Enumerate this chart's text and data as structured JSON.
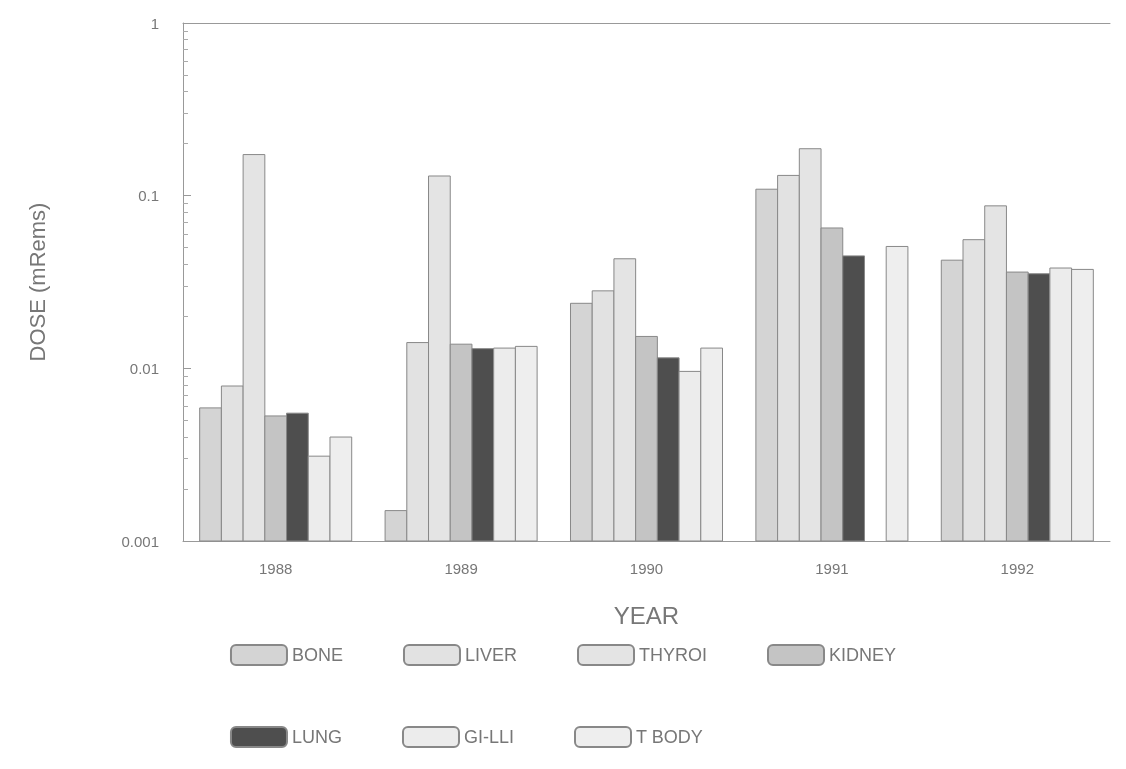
{
  "chart_data": {
    "type": "bar",
    "xlabel": "YEAR",
    "ylabel": "DOSE (mRems)",
    "categories": [
      "1988",
      "1989",
      "1990",
      "1991",
      "1992"
    ],
    "log": "y",
    "ylim": [
      0.001,
      1
    ],
    "yticks": [
      0.001,
      0.01,
      0.1,
      1
    ],
    "grid": false,
    "legend": "bottom",
    "series": [
      {
        "name": "BONE",
        "color": "#d4d4d4",
        "values": [
          0.0059,
          0.0015,
          0.0238,
          0.109,
          0.0423
        ]
      },
      {
        "name": "LIVER",
        "color": "#e2e2e2",
        "values": [
          0.0079,
          0.0141,
          0.0281,
          0.131,
          0.0556
        ]
      },
      {
        "name": "THYROI",
        "color": "#e4e4e4",
        "values": [
          0.173,
          0.13,
          0.0431,
          0.187,
          0.0873
        ]
      },
      {
        "name": "KIDNEY",
        "color": "#c4c4c4",
        "values": [
          0.0053,
          0.0138,
          0.0153,
          0.065,
          0.0361
        ]
      },
      {
        "name": "LUNG",
        "color": "#4e4e4e",
        "values": [
          0.0055,
          0.013,
          0.0115,
          0.0448,
          0.0353
        ]
      },
      {
        "name": "GI-LLI",
        "color": "#ececec",
        "values": [
          0.0031,
          0.0131,
          0.0096,
          null,
          0.0381
        ]
      },
      {
        "name": "T BODY",
        "color": "#eeeeee",
        "values": [
          0.004,
          0.0134,
          0.0131,
          0.0508,
          0.0374
        ]
      }
    ]
  }
}
